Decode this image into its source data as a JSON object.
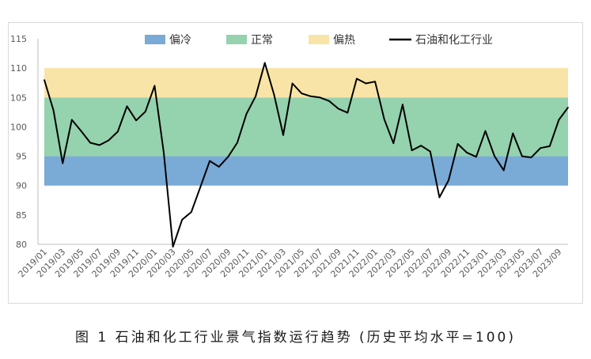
{
  "caption": "图 1  石油和化工行业景气指数运行趋势 (历史平均水平=100)",
  "chart_data": {
    "type": "line",
    "title": "",
    "xlabel": "",
    "ylabel": "",
    "ylim": [
      80,
      115
    ],
    "yticks": [
      80,
      85,
      90,
      95,
      100,
      105,
      110,
      115
    ],
    "grid": false,
    "legend_position": "top",
    "bands": [
      {
        "name": "偏冷",
        "from": 90,
        "to": 95,
        "color": "#7aaad6"
      },
      {
        "name": "正常",
        "from": 95,
        "to": 105,
        "color": "#95d2ae"
      },
      {
        "name": "偏热",
        "from": 105,
        "to": 110,
        "color": "#f8e4a6"
      }
    ],
    "x_labels_shown": [
      "2019/01",
      "2019/03",
      "2019/05",
      "2019/07",
      "2019/09",
      "2019/11",
      "2020/01",
      "2020/03",
      "2020/05",
      "2020/07",
      "2020/09",
      "2020/11",
      "2021/01",
      "2021/03",
      "2021/05",
      "2021/07",
      "2021/09",
      "2021/11",
      "2022/01",
      "2022/03",
      "2022/05",
      "2022/07",
      "2022/09",
      "2022/11",
      "2023/01",
      "2023/03",
      "2023/05",
      "2023/07",
      "2023/09"
    ],
    "series": [
      {
        "name": "石油和化工行业",
        "color": "#000000",
        "x": [
          "2019/01",
          "2019/02",
          "2019/03",
          "2019/04",
          "2019/05",
          "2019/06",
          "2019/07",
          "2019/08",
          "2019/09",
          "2019/10",
          "2019/11",
          "2019/12",
          "2020/01",
          "2020/02",
          "2020/03",
          "2020/04",
          "2020/05",
          "2020/06",
          "2020/07",
          "2020/08",
          "2020/09",
          "2020/10",
          "2020/11",
          "2020/12",
          "2021/01",
          "2021/02",
          "2021/03",
          "2021/04",
          "2021/05",
          "2021/06",
          "2021/07",
          "2021/08",
          "2021/09",
          "2021/10",
          "2021/11",
          "2021/12",
          "2022/01",
          "2022/02",
          "2022/03",
          "2022/04",
          "2022/05",
          "2022/06",
          "2022/07",
          "2022/08",
          "2022/09",
          "2022/10",
          "2022/11",
          "2022/12",
          "2023/01",
          "2023/02",
          "2023/03",
          "2023/04",
          "2023/05",
          "2023/06",
          "2023/07",
          "2023/08",
          "2023/09",
          "2023/10"
        ],
        "values": [
          108.0,
          102.8,
          93.8,
          101.2,
          99.3,
          97.3,
          96.9,
          97.7,
          99.2,
          103.5,
          101.1,
          102.6,
          107.0,
          95.6,
          79.6,
          84.2,
          85.5,
          89.8,
          94.2,
          93.2,
          94.9,
          97.3,
          102.2,
          105.2,
          110.9,
          105.5,
          98.6,
          107.4,
          105.7,
          105.2,
          105.0,
          104.4,
          103.1,
          102.4,
          108.2,
          107.4,
          107.7,
          101.3,
          97.2,
          103.8,
          96.0,
          96.8,
          95.8,
          88.0,
          90.9,
          97.1,
          95.6,
          94.9,
          99.3,
          95.0,
          92.6,
          98.9,
          95.0,
          94.8,
          96.4,
          96.7,
          101.2,
          103.3
        ]
      }
    ]
  }
}
